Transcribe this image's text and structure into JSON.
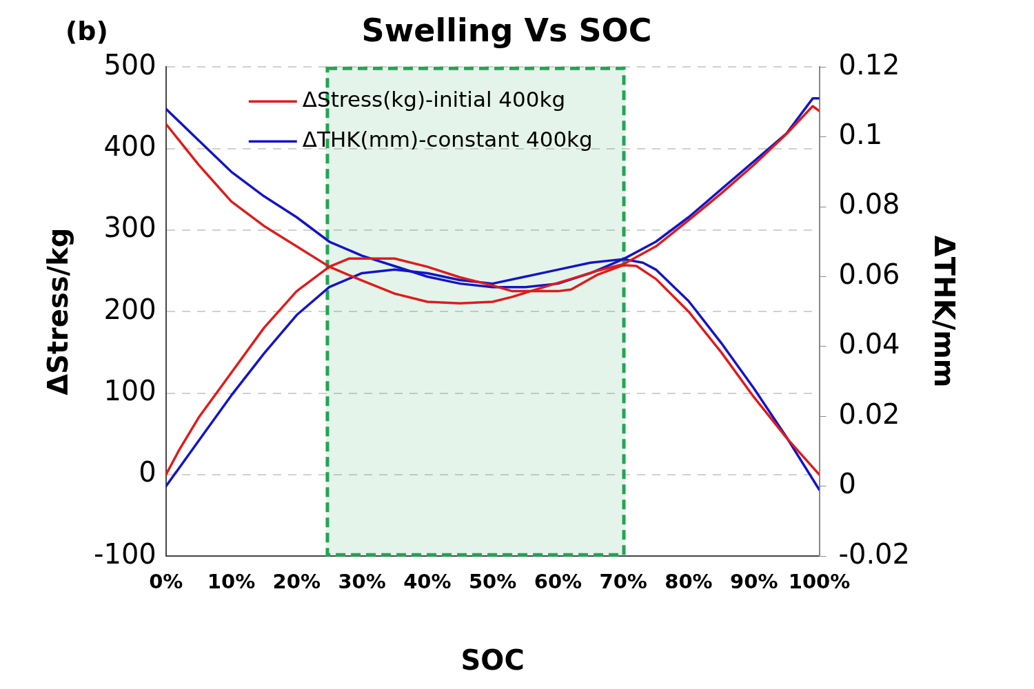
{
  "chart_data": {
    "type": "line",
    "title": "Swelling Vs SOC",
    "xlabel": "SOC",
    "ylabel": "ΔStress/kg",
    "y2label": "ΔTHK/mm",
    "annotations": [
      "(b)"
    ],
    "xlim": [
      0,
      100
    ],
    "xticks": [
      {
        "value": 0,
        "label": "0%"
      },
      {
        "value": 10,
        "label": "10%"
      },
      {
        "value": 20,
        "label": "20%"
      },
      {
        "value": 30,
        "label": "30%"
      },
      {
        "value": 40,
        "label": "40%"
      },
      {
        "value": 50,
        "label": "50%"
      },
      {
        "value": 60,
        "label": "60%"
      },
      {
        "value": 70,
        "label": "70%"
      },
      {
        "value": 80,
        "label": "80%"
      },
      {
        "value": 90,
        "label": "90%"
      },
      {
        "value": 100,
        "label": "100%"
      }
    ],
    "ylim": [
      -100,
      500
    ],
    "yticks": [
      -100,
      0,
      100,
      200,
      300,
      400,
      500
    ],
    "y2lim": [
      -0.02,
      0.12
    ],
    "y2ticks": [
      -0.02,
      0,
      0.02,
      0.04,
      0.06,
      0.08,
      0.1,
      0.12
    ],
    "grid": "y",
    "legend": "top",
    "line_style": "solid",
    "marker": "none",
    "bands": [
      {
        "axis": "x",
        "from": 24.5,
        "to": 70.3,
        "color": "#22a552"
      }
    ],
    "series": [
      {
        "name": "ΔStress(kg)-initial 400kg",
        "color": "#e01b1b",
        "x": [
          0,
          2,
          5,
          10,
          15,
          20,
          25,
          30,
          35,
          40,
          45,
          50,
          53,
          57,
          62,
          66,
          70,
          75,
          80,
          85,
          90,
          95,
          99,
          100
        ],
        "values": [
          430,
          410,
          380,
          335,
          305,
          280,
          255,
          238,
          222,
          212,
          210,
          212,
          218,
          228,
          240,
          250,
          258,
          280,
          312,
          345,
          380,
          418,
          452,
          446
        ]
      },
      {
        "color": "#e01b1b",
        "x": [
          0,
          2,
          5,
          10,
          15,
          20,
          25,
          28,
          35,
          40,
          45,
          50,
          53,
          60,
          62,
          66,
          70,
          72,
          75,
          80,
          85,
          90,
          95,
          100
        ],
        "values": [
          0,
          30,
          70,
          125,
          180,
          225,
          255,
          265,
          265,
          255,
          242,
          232,
          225,
          225,
          227,
          245,
          257,
          256,
          240,
          200,
          150,
          95,
          45,
          0
        ]
      },
      {
        "name": "ΔTHK(mm)-constant 400kg",
        "color": "#1414c8",
        "axis": "y2",
        "x": [
          0,
          5,
          10,
          15,
          20,
          25,
          30,
          35,
          40,
          45,
          50,
          55,
          60,
          65,
          70,
          75,
          80,
          85,
          90,
          95,
          99,
          100
        ],
        "values": [
          0.108,
          0.099,
          0.09,
          0.083,
          0.077,
          0.07,
          0.066,
          0.063,
          0.06,
          0.058,
          0.057,
          0.057,
          0.058,
          0.061,
          0.065,
          0.07,
          0.077,
          0.085,
          0.093,
          0.101,
          0.111,
          0.111
        ]
      },
      {
        "color": "#1414c8",
        "axis": "y2",
        "x": [
          0,
          5,
          10,
          15,
          20,
          25,
          30,
          35,
          40,
          45,
          50,
          55,
          60,
          65,
          70,
          73,
          75,
          80,
          85,
          90,
          95,
          100
        ],
        "values": [
          0,
          0.013,
          0.026,
          0.038,
          0.049,
          0.057,
          0.061,
          0.062,
          0.061,
          0.059,
          0.058,
          0.06,
          0.062,
          0.064,
          0.065,
          0.064,
          0.062,
          0.053,
          0.041,
          0.028,
          0.014,
          -0.001
        ]
      }
    ]
  }
}
